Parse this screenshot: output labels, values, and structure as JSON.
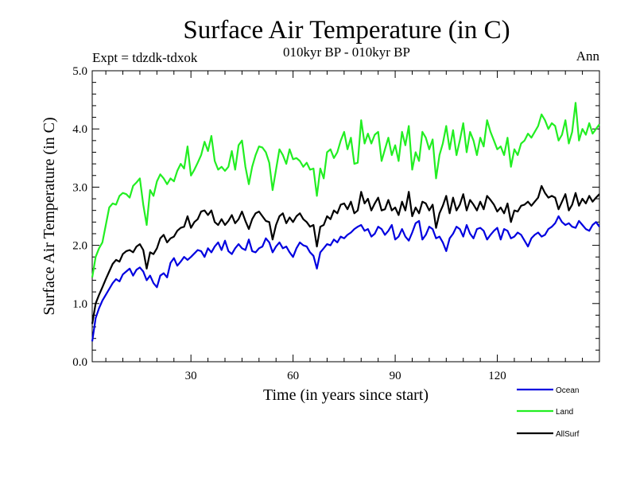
{
  "chart_data": {
    "type": "line",
    "title": "Surface Air Temperature (in C)",
    "subtitle": "010kyr BP - 010kyr BP",
    "experiment": "Expt = tdzdk-tdxok",
    "season": "Ann",
    "xlabel": "Time (in years since start)",
    "ylabel": "Surface Air Temperature (in C)",
    "xlim": [
      1,
      150
    ],
    "ylim": [
      0.0,
      5.0
    ],
    "xticks": [
      30,
      60,
      90,
      120
    ],
    "xtick_labels": [
      "30",
      "60",
      "90",
      "120"
    ],
    "yticks": [
      0.0,
      1.0,
      2.0,
      3.0,
      4.0,
      5.0
    ],
    "ytick_labels": [
      "0.0",
      "1.0",
      "2.0",
      "3.0",
      "4.0",
      "5.0"
    ],
    "legend_position": "bottom-right",
    "series": [
      {
        "name": "Ocean",
        "color": "#0000e0",
        "x": [
          1,
          2,
          3,
          4,
          5,
          6,
          7,
          8,
          9,
          10,
          11,
          12,
          13,
          14,
          15,
          16,
          17,
          18,
          19,
          20,
          21,
          22,
          23,
          24,
          25,
          26,
          27,
          28,
          29,
          30,
          31,
          32,
          33,
          34,
          35,
          36,
          37,
          38,
          39,
          40,
          41,
          42,
          43,
          44,
          45,
          46,
          47,
          48,
          49,
          50,
          51,
          52,
          53,
          54,
          55,
          56,
          57,
          58,
          59,
          60,
          61,
          62,
          63,
          64,
          65,
          66,
          67,
          68,
          69,
          70,
          71,
          72,
          73,
          74,
          75,
          76,
          77,
          78,
          79,
          80,
          81,
          82,
          83,
          84,
          85,
          86,
          87,
          88,
          89,
          90,
          91,
          92,
          93,
          94,
          95,
          96,
          97,
          98,
          99,
          100,
          101,
          102,
          103,
          104,
          105,
          106,
          107,
          108,
          109,
          110,
          111,
          112,
          113,
          114,
          115,
          116,
          117,
          118,
          119,
          120,
          121,
          122,
          123,
          124,
          125,
          126,
          127,
          128,
          129,
          130,
          131,
          132,
          133,
          134,
          135,
          136,
          137,
          138,
          139,
          140,
          141,
          142,
          143,
          144,
          145,
          146,
          147,
          148,
          149,
          150
        ],
        "values": [
          0.35,
          0.75,
          0.92,
          1.05,
          1.15,
          1.25,
          1.35,
          1.42,
          1.38,
          1.5,
          1.55,
          1.6,
          1.48,
          1.58,
          1.62,
          1.55,
          1.4,
          1.48,
          1.35,
          1.28,
          1.48,
          1.52,
          1.45,
          1.7,
          1.78,
          1.65,
          1.72,
          1.8,
          1.75,
          1.8,
          1.86,
          1.92,
          1.9,
          1.8,
          1.95,
          1.88,
          1.98,
          2.05,
          1.92,
          2.08,
          1.9,
          1.85,
          1.95,
          2.02,
          1.95,
          1.92,
          2.1,
          1.9,
          1.88,
          1.95,
          1.98,
          2.12,
          2.05,
          1.88,
          1.98,
          2.05,
          1.95,
          1.98,
          1.88,
          1.8,
          1.95,
          2.05,
          2.0,
          1.98,
          1.88,
          1.82,
          1.6,
          1.88,
          1.95,
          2.02,
          2.0,
          2.1,
          2.05,
          2.15,
          2.12,
          2.18,
          2.22,
          2.28,
          2.32,
          2.35,
          2.25,
          2.28,
          2.15,
          2.2,
          2.32,
          2.28,
          2.18,
          2.25,
          2.35,
          2.1,
          2.15,
          2.28,
          2.15,
          2.08,
          2.22,
          2.38,
          2.42,
          2.1,
          2.18,
          2.32,
          2.28,
          2.12,
          2.15,
          2.05,
          1.9,
          2.12,
          2.2,
          2.32,
          2.28,
          2.15,
          2.35,
          2.2,
          2.12,
          2.28,
          2.3,
          2.25,
          2.1,
          2.18,
          2.25,
          2.3,
          2.1,
          2.28,
          2.25,
          2.12,
          2.15,
          2.22,
          2.18,
          2.08,
          1.98,
          2.12,
          2.18,
          2.22,
          2.15,
          2.18,
          2.28,
          2.32,
          2.38,
          2.5,
          2.4,
          2.35,
          2.38,
          2.32,
          2.3,
          2.42,
          2.35,
          2.28,
          2.25,
          2.35,
          2.4,
          2.32
        ],
        "label": "Ocean"
      },
      {
        "name": "Land",
        "color": "#22ee22",
        "x": [
          1,
          2,
          3,
          4,
          5,
          6,
          7,
          8,
          9,
          10,
          11,
          12,
          13,
          14,
          15,
          16,
          17,
          18,
          19,
          20,
          21,
          22,
          23,
          24,
          25,
          26,
          27,
          28,
          29,
          30,
          31,
          32,
          33,
          34,
          35,
          36,
          37,
          38,
          39,
          40,
          41,
          42,
          43,
          44,
          45,
          46,
          47,
          48,
          49,
          50,
          51,
          52,
          53,
          54,
          55,
          56,
          57,
          58,
          59,
          60,
          61,
          62,
          63,
          64,
          65,
          66,
          67,
          68,
          69,
          70,
          71,
          72,
          73,
          74,
          75,
          76,
          77,
          78,
          79,
          80,
          81,
          82,
          83,
          84,
          85,
          86,
          87,
          88,
          89,
          90,
          91,
          92,
          93,
          94,
          95,
          96,
          97,
          98,
          99,
          100,
          101,
          102,
          103,
          104,
          105,
          106,
          107,
          108,
          109,
          110,
          111,
          112,
          113,
          114,
          115,
          116,
          117,
          118,
          119,
          120,
          121,
          122,
          123,
          124,
          125,
          126,
          127,
          128,
          129,
          130,
          131,
          132,
          133,
          134,
          135,
          136,
          137,
          138,
          139,
          140,
          141,
          142,
          143,
          144,
          145,
          146,
          147,
          148,
          149,
          150
        ],
        "values": [
          1.45,
          1.8,
          1.95,
          2.05,
          2.35,
          2.65,
          2.72,
          2.7,
          2.85,
          2.9,
          2.88,
          2.82,
          3.02,
          3.08,
          3.15,
          2.7,
          2.35,
          2.95,
          2.85,
          3.1,
          3.22,
          3.15,
          3.05,
          3.15,
          3.1,
          3.28,
          3.4,
          3.32,
          3.7,
          3.2,
          3.3,
          3.42,
          3.55,
          3.78,
          3.62,
          3.88,
          3.45,
          3.3,
          3.35,
          3.28,
          3.35,
          3.62,
          3.3,
          3.72,
          3.8,
          3.35,
          3.05,
          3.35,
          3.55,
          3.7,
          3.68,
          3.6,
          3.42,
          2.95,
          3.3,
          3.65,
          3.55,
          3.4,
          3.65,
          3.48,
          3.5,
          3.45,
          3.35,
          3.42,
          3.3,
          3.32,
          2.85,
          3.32,
          3.15,
          3.6,
          3.65,
          3.5,
          3.6,
          3.8,
          3.95,
          3.65,
          3.85,
          3.4,
          3.42,
          4.15,
          3.75,
          3.92,
          3.75,
          3.9,
          3.95,
          3.45,
          3.65,
          3.85,
          3.55,
          3.72,
          3.45,
          3.95,
          3.72,
          4.05,
          3.3,
          3.6,
          3.45,
          3.95,
          3.85,
          3.65,
          3.82,
          3.15,
          3.55,
          3.75,
          4.05,
          3.65,
          3.98,
          3.55,
          3.8,
          4.1,
          3.6,
          3.95,
          3.8,
          3.55,
          3.85,
          3.7,
          4.15,
          3.95,
          3.8,
          3.65,
          3.7,
          3.55,
          3.85,
          3.35,
          3.65,
          3.55,
          3.75,
          3.8,
          3.92,
          3.85,
          3.95,
          4.05,
          4.25,
          4.15,
          4.0,
          4.1,
          4.05,
          3.8,
          3.9,
          4.15,
          3.75,
          3.95,
          4.45,
          3.8,
          4.0,
          3.9,
          4.1,
          3.92,
          4.0,
          4.08
        ],
        "label": "Land"
      },
      {
        "name": "AllSurf",
        "color": "#000000",
        "x": [
          1,
          2,
          3,
          4,
          5,
          6,
          7,
          8,
          9,
          10,
          11,
          12,
          13,
          14,
          15,
          16,
          17,
          18,
          19,
          20,
          21,
          22,
          23,
          24,
          25,
          26,
          27,
          28,
          29,
          30,
          31,
          32,
          33,
          34,
          35,
          36,
          37,
          38,
          39,
          40,
          41,
          42,
          43,
          44,
          45,
          46,
          47,
          48,
          49,
          50,
          51,
          52,
          53,
          54,
          55,
          56,
          57,
          58,
          59,
          60,
          61,
          62,
          63,
          64,
          65,
          66,
          67,
          68,
          69,
          70,
          71,
          72,
          73,
          74,
          75,
          76,
          77,
          78,
          79,
          80,
          81,
          82,
          83,
          84,
          85,
          86,
          87,
          88,
          89,
          90,
          91,
          92,
          93,
          94,
          95,
          96,
          97,
          98,
          99,
          100,
          101,
          102,
          103,
          104,
          105,
          106,
          107,
          108,
          109,
          110,
          111,
          112,
          113,
          114,
          115,
          116,
          117,
          118,
          119,
          120,
          121,
          122,
          123,
          124,
          125,
          126,
          127,
          128,
          129,
          130,
          131,
          132,
          133,
          134,
          135,
          136,
          137,
          138,
          139,
          140,
          141,
          142,
          143,
          144,
          145,
          146,
          147,
          148,
          149,
          150
        ],
        "values": [
          0.65,
          1.0,
          1.15,
          1.28,
          1.42,
          1.55,
          1.68,
          1.75,
          1.72,
          1.85,
          1.9,
          1.92,
          1.88,
          1.98,
          2.02,
          1.92,
          1.6,
          1.88,
          1.85,
          1.95,
          2.12,
          2.18,
          2.05,
          2.12,
          2.15,
          2.25,
          2.3,
          2.32,
          2.5,
          2.3,
          2.4,
          2.45,
          2.58,
          2.6,
          2.52,
          2.6,
          2.4,
          2.35,
          2.45,
          2.35,
          2.42,
          2.52,
          2.38,
          2.45,
          2.58,
          2.42,
          2.28,
          2.45,
          2.55,
          2.58,
          2.5,
          2.42,
          2.4,
          2.1,
          2.35,
          2.5,
          2.55,
          2.38,
          2.48,
          2.4,
          2.5,
          2.55,
          2.45,
          2.4,
          2.32,
          2.35,
          1.98,
          2.32,
          2.35,
          2.5,
          2.45,
          2.6,
          2.55,
          2.7,
          2.72,
          2.62,
          2.75,
          2.55,
          2.6,
          2.92,
          2.72,
          2.8,
          2.6,
          2.72,
          2.82,
          2.6,
          2.62,
          2.78,
          2.6,
          2.65,
          2.52,
          2.75,
          2.6,
          2.92,
          2.5,
          2.65,
          2.55,
          2.75,
          2.72,
          2.6,
          2.7,
          2.3,
          2.55,
          2.68,
          2.85,
          2.55,
          2.82,
          2.6,
          2.7,
          2.88,
          2.6,
          2.78,
          2.7,
          2.6,
          2.75,
          2.62,
          2.85,
          2.78,
          2.7,
          2.58,
          2.65,
          2.55,
          2.72,
          2.4,
          2.6,
          2.58,
          2.68,
          2.7,
          2.75,
          2.68,
          2.75,
          2.82,
          3.02,
          2.9,
          2.82,
          2.85,
          2.82,
          2.62,
          2.75,
          2.88,
          2.6,
          2.7,
          2.9,
          2.68,
          2.8,
          2.72,
          2.85,
          2.75,
          2.82,
          2.88
        ],
        "label": "AllSurf"
      }
    ]
  }
}
